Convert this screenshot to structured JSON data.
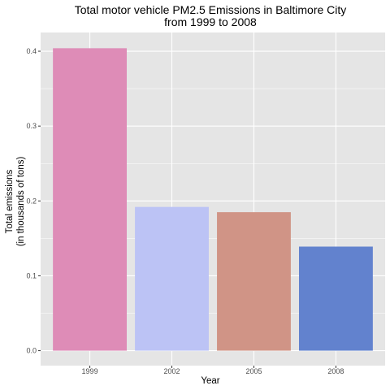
{
  "chart_data": {
    "type": "bar",
    "title_lines": [
      "Total motor vehicle PM2.5 Emissions in Baltimore City",
      "from 1999 to 2008"
    ],
    "xlabel": "Year",
    "ylabel_lines": [
      "Total emissions",
      "(in thousands of tons)"
    ],
    "categories": [
      "1999",
      "2002",
      "2005",
      "2008"
    ],
    "values": [
      0.404,
      0.192,
      0.185,
      0.139
    ],
    "colors": [
      "#DE8CB7",
      "#BCC3F5",
      "#D09486",
      "#6282CE"
    ],
    "ylim": [
      -0.02,
      0.425
    ],
    "yticks": [
      0.0,
      0.1,
      0.2,
      0.3,
      0.4
    ],
    "ytick_labels": [
      "0.0",
      "0.1",
      "0.2",
      "0.3",
      "0.4"
    ],
    "grid": true,
    "panel_background": "#E5E5E5",
    "grid_color": "#FFFFFF"
  }
}
